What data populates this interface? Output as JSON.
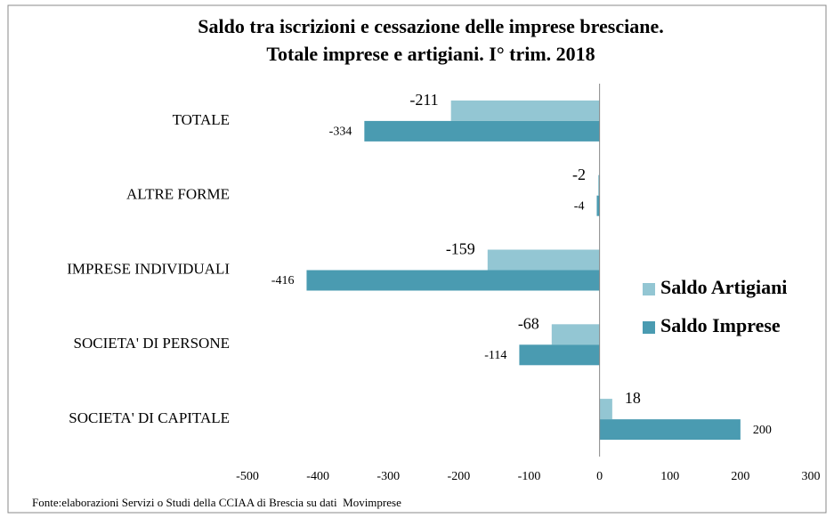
{
  "chart_data": {
    "type": "barh",
    "title": [
      "Saldo tra iscrizioni e cessazione delle imprese bresciane.",
      "Totale imprese e artigiani. I° trim. 2018"
    ],
    "categories": [
      "TOTALE",
      "ALTRE FORME",
      "IMPRESE INDIVIDUALI",
      "SOCIETA' DI PERSONE",
      "SOCIETA' DI CAPITALE"
    ],
    "series": [
      {
        "name": "Saldo Artigiani",
        "color": "#93c6d3",
        "values": [
          -211,
          -2,
          -159,
          -68,
          18
        ]
      },
      {
        "name": "Saldo Imprese",
        "color": "#4a9bb1",
        "values": [
          -334,
          -4,
          -416,
          -114,
          200
        ]
      }
    ],
    "xlim": [
      -500,
      300
    ],
    "xticks": [
      -500,
      -400,
      -300,
      -200,
      -100,
      0,
      100,
      200,
      300
    ],
    "grid": false,
    "legend": "right",
    "source": "Fonte:elaborazioni Servizi o Studi della CCIAA di Brescia su dati  Movimprese"
  }
}
